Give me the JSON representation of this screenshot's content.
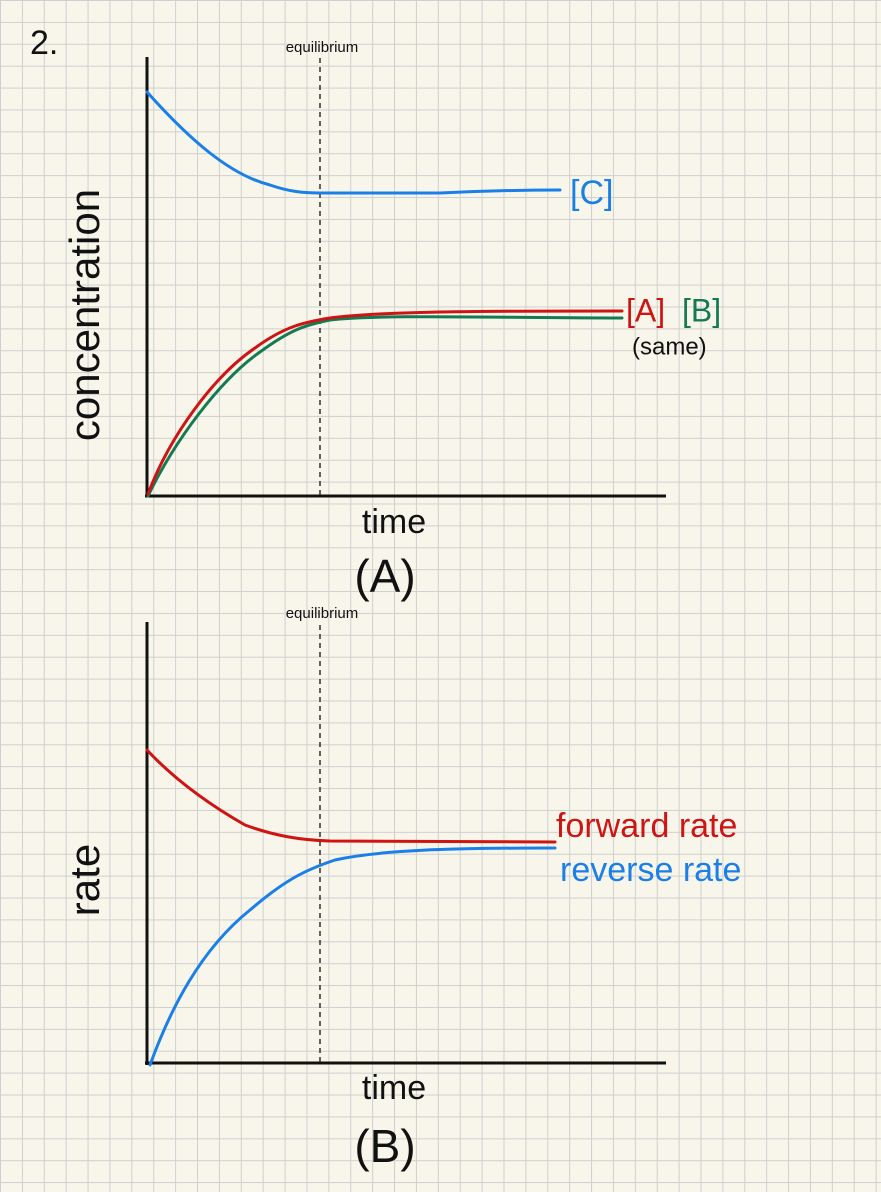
{
  "problem_number": "2.",
  "graph_a": {
    "equilibrium": "equilibrium",
    "y_label": "concentration",
    "x_label": "time",
    "caption": "(A)",
    "labels": {
      "c": "[C]",
      "a": "[A]",
      "b": "[B]",
      "note": "(same)"
    }
  },
  "graph_b": {
    "equilibrium": "equilibrium",
    "y_label": "rate",
    "x_label": "time",
    "caption": "(B)",
    "labels": {
      "forward": "forward rate",
      "reverse": "reverse rate"
    }
  }
}
